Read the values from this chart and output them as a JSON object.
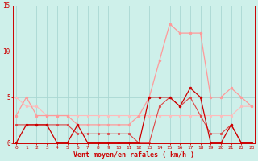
{
  "x": [
    0,
    1,
    2,
    3,
    4,
    5,
    6,
    7,
    8,
    9,
    10,
    11,
    12,
    13,
    14,
    15,
    16,
    17,
    18,
    19,
    20,
    21,
    22,
    23
  ],
  "series": [
    {
      "values": [
        0,
        2,
        2,
        2,
        0,
        0,
        2,
        0,
        0,
        0,
        0,
        0,
        0,
        5,
        5,
        5,
        4,
        6,
        5,
        0,
        0,
        2,
        0,
        0
      ],
      "color": "#cc0000",
      "linewidth": 0.9,
      "markersize": 2.0
    },
    {
      "values": [
        2,
        2,
        2,
        2,
        2,
        2,
        1,
        1,
        1,
        1,
        1,
        1,
        0,
        0,
        4,
        5,
        4,
        5,
        3,
        1,
        1,
        2,
        0,
        0
      ],
      "color": "#dd4444",
      "linewidth": 0.8,
      "markersize": 1.8
    },
    {
      "values": [
        3,
        5,
        3,
        3,
        3,
        3,
        2,
        2,
        2,
        2,
        2,
        2,
        3,
        5,
        9,
        13,
        12,
        12,
        12,
        5,
        5,
        6,
        5,
        4
      ],
      "color": "#ff9999",
      "linewidth": 0.9,
      "markersize": 2.0
    },
    {
      "values": [
        5,
        4,
        4,
        3,
        3,
        3,
        3,
        3,
        3,
        3,
        3,
        3,
        3,
        3,
        3,
        3,
        3,
        3,
        3,
        3,
        3,
        3,
        4,
        4
      ],
      "color": "#ffbbbb",
      "linewidth": 0.8,
      "markersize": 1.8
    }
  ],
  "bg_color": "#cef0ea",
  "grid_color": "#aad8d3",
  "xlabel": "Vent moyen/en rafales ( km/h )",
  "ylim": [
    0,
    15
  ],
  "xlim": [
    0,
    23
  ],
  "yticks": [
    0,
    5,
    10,
    15
  ],
  "axis_color": "#cc0000",
  "tick_color": "#cc0000",
  "xlabel_color": "#cc0000"
}
